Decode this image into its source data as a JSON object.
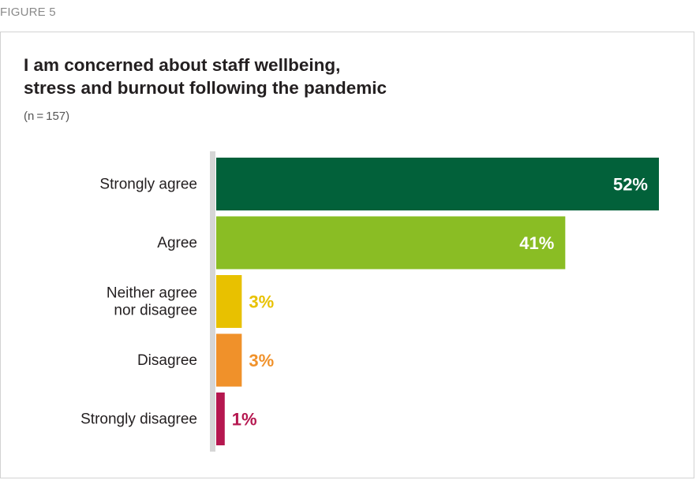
{
  "figure_label": "FIGURE 5",
  "title_line1": "I am concerned about staff wellbeing,",
  "title_line2": "stress and burnout following the pandemic",
  "subtitle": "(n = 157)",
  "chart_data": {
    "type": "bar",
    "orientation": "horizontal",
    "title": "I am concerned about staff wellbeing, stress and burnout following the pandemic",
    "subtitle": "(n = 157)",
    "categories": [
      [
        "Strongly agree"
      ],
      [
        "Agree"
      ],
      [
        "Neither agree",
        "nor disagree"
      ],
      [
        "Disagree"
      ],
      [
        "Strongly disagree"
      ]
    ],
    "values": [
      52,
      41,
      3,
      3,
      1
    ],
    "value_labels": [
      "52%",
      "41%",
      "3%",
      "3%",
      "1%"
    ],
    "colors": [
      "#02613a",
      "#8abd24",
      "#e8c100",
      "#f0912a",
      "#b5174f"
    ],
    "label_colors_outside": [
      "#ffffff",
      "#ffffff",
      "#e8c100",
      "#f0912a",
      "#b5174f"
    ],
    "xlim": [
      0,
      52
    ],
    "grid": false,
    "legend": "none"
  }
}
